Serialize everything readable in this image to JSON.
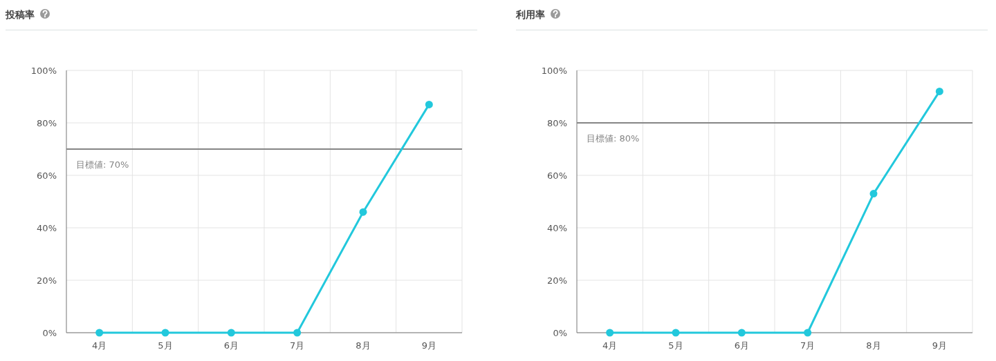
{
  "chart_data": [
    {
      "type": "line",
      "title": "投稿率",
      "categories": [
        "4月",
        "5月",
        "6月",
        "7月",
        "8月",
        "9月"
      ],
      "series": [
        {
          "color": "#22c8dc",
          "values": [
            0,
            0,
            0,
            0,
            46,
            87
          ]
        }
      ],
      "ylim": [
        0,
        100
      ],
      "yticks": [
        {
          "value": 0,
          "label": "0%"
        },
        {
          "value": 20,
          "label": "20%"
        },
        {
          "value": 40,
          "label": "40%"
        },
        {
          "value": 60,
          "label": "60%"
        },
        {
          "value": 80,
          "label": "80%"
        },
        {
          "value": 100,
          "label": "100%"
        }
      ],
      "grid": true,
      "marker": "circle",
      "ref_lines": [
        {
          "axis": "y",
          "value": 70,
          "label": "目標値: 70%",
          "color": "#858585"
        }
      ]
    },
    {
      "type": "line",
      "title": "利用率",
      "categories": [
        "4月",
        "5月",
        "6月",
        "7月",
        "8月",
        "9月"
      ],
      "series": [
        {
          "color": "#22c8dc",
          "values": [
            0,
            0,
            0,
            0,
            53,
            92
          ]
        }
      ],
      "ylim": [
        0,
        100
      ],
      "yticks": [
        {
          "value": 0,
          "label": "0%"
        },
        {
          "value": 20,
          "label": "20%"
        },
        {
          "value": 40,
          "label": "40%"
        },
        {
          "value": 60,
          "label": "60%"
        },
        {
          "value": 80,
          "label": "80%"
        },
        {
          "value": 100,
          "label": "100%"
        }
      ],
      "grid": true,
      "marker": "circle",
      "ref_lines": [
        {
          "axis": "y",
          "value": 80,
          "label": "目標値: 80%",
          "color": "#858585"
        }
      ]
    }
  ]
}
